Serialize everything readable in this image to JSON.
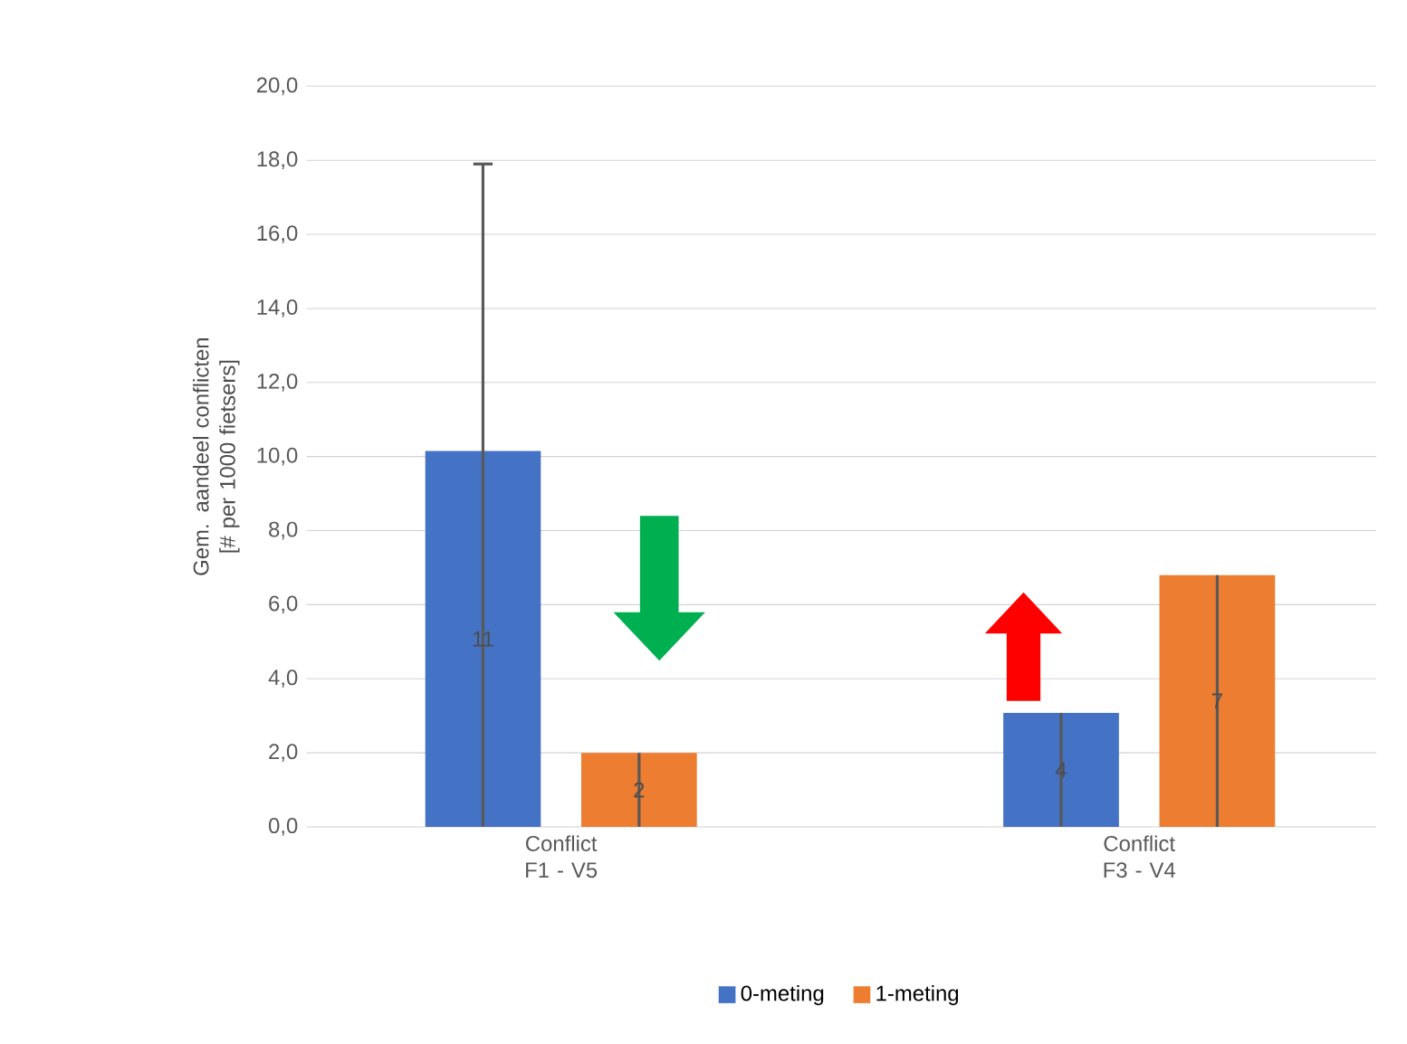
{
  "chart_data": {
    "type": "bar",
    "ylabel": "Gem. aandeel conflicten [# per 1000 fietsers]",
    "categories": [
      "Conflict F1 - V5",
      "Conflict F3 - V4"
    ],
    "series": [
      {
        "name": "0-meting",
        "color": "#4472c4",
        "values": [
          10.15,
          3.08
        ],
        "errors": [
          [
            0,
            17.9
          ],
          [
            0,
            3.08
          ]
        ]
      },
      {
        "name": "1-meting",
        "color": "#ed7d31",
        "values": [
          2.0,
          6.8
        ],
        "errors": [
          [
            0,
            2.0
          ],
          [
            0,
            6.8
          ]
        ]
      }
    ],
    "annotations": [
      "11",
      "2",
      "4",
      "7"
    ],
    "ylim": [
      0,
      20
    ],
    "yticks": [
      {
        "value": 0,
        "label": "0,0"
      },
      {
        "value": 2,
        "label": "2,0"
      },
      {
        "value": 4,
        "label": "4,0"
      },
      {
        "value": 6,
        "label": "6,0"
      },
      {
        "value": 8,
        "label": "8,0"
      },
      {
        "value": 10,
        "label": "10,0"
      },
      {
        "value": 12,
        "label": "12,0"
      },
      {
        "value": 14,
        "label": "14,0"
      },
      {
        "value": 16,
        "label": "16,0"
      },
      {
        "value": 18,
        "label": "18,0"
      },
      {
        "value": 20,
        "label": "20,0"
      }
    ],
    "grid": "y",
    "legend": "bottom"
  }
}
